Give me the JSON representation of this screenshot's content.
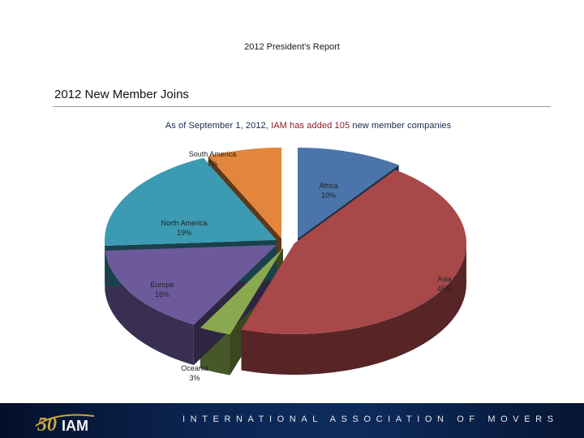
{
  "header": {
    "report_title": "2012 President's Report",
    "page_title": "2012 New Member Joins",
    "subtitle_pre": "As of September 1, 2012, ",
    "subtitle_mid": "IAM has added 105",
    "subtitle_post": " new member companies"
  },
  "chart_data": {
    "type": "pie",
    "style": "3d-exploded",
    "slices": [
      {
        "label": "Africa",
        "pct_label": "10%",
        "value": 10,
        "color": "#4a74aa"
      },
      {
        "label": "Asia",
        "pct_label": "45%",
        "value": 45,
        "color": "#a84848"
      },
      {
        "label": "Oceania",
        "pct_label": "3%",
        "value": 3,
        "color": "#8aa84e"
      },
      {
        "label": "Europe",
        "pct_label": "16%",
        "value": 16,
        "color": "#6d5a9a"
      },
      {
        "label": "North America",
        "pct_label": "19%",
        "value": 19,
        "color": "#3c9bb2"
      },
      {
        "label": "South America",
        "pct_label": "7%",
        "value": 7,
        "color": "#e2863c"
      }
    ]
  },
  "footer": {
    "logo_number": "50",
    "logo_text": "IAM",
    "banner_text": "INTERNATIONAL ASSOCIATION OF MOVERS",
    "background_color": "#0b2552"
  }
}
